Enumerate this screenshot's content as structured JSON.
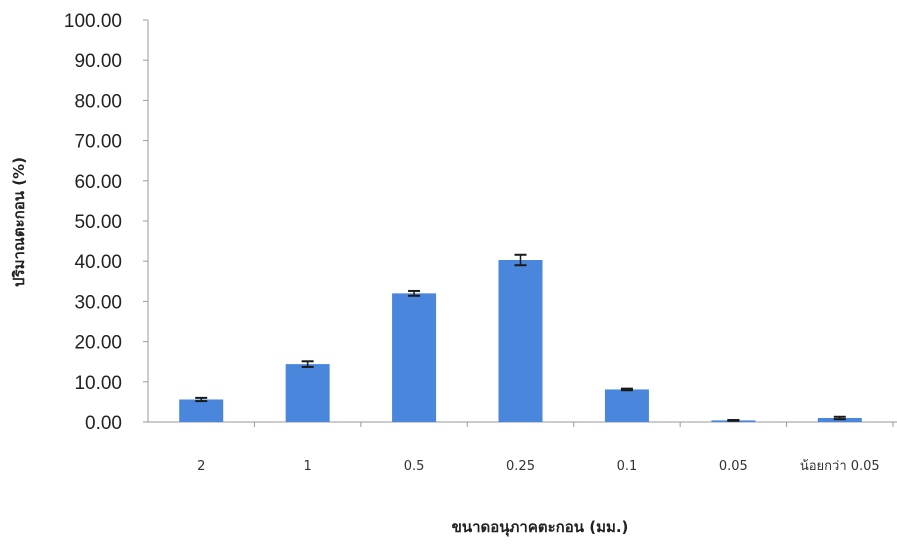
{
  "chart_data": {
    "type": "bar",
    "title": "",
    "xlabel": "ขนาดอนุภาคตะกอน (มม.)",
    "ylabel": "ปริมาณตะกอน (%)",
    "ylim": [
      0,
      100
    ],
    "yticks": [
      "0.00",
      "10.00",
      "20.00",
      "30.00",
      "40.00",
      "50.00",
      "60.00",
      "70.00",
      "80.00",
      "90.00",
      "100.00"
    ],
    "categories": [
      "2",
      "1",
      "0.5",
      "0.25",
      "0.1",
      "0.05",
      "น้อยกว่า 0.05"
    ],
    "values": [
      5.6,
      14.4,
      32.0,
      40.3,
      8.1,
      0.4,
      1.0
    ],
    "errors": [
      0.4,
      0.7,
      0.6,
      1.3,
      0.2,
      0.1,
      0.3
    ],
    "bar_color": "#4a86dc",
    "error_bar_color": "#1a1a1a",
    "grid": false,
    "legend": "none"
  }
}
